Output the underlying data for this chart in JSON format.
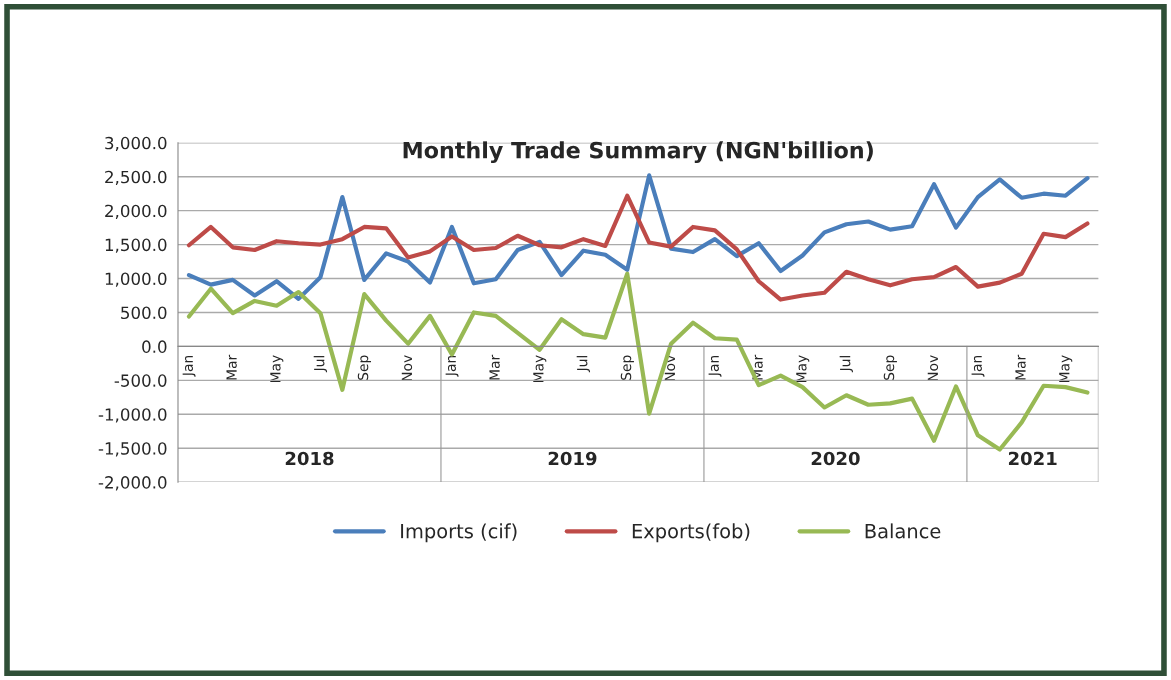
{
  "chart_data": {
    "type": "line",
    "title": "Monthly Trade Summary (NGN'billion)",
    "categories": [
      "Jan",
      null,
      "Mar",
      null,
      "May",
      null,
      "Jul",
      null,
      "Sep",
      null,
      "Nov",
      null,
      "Jan",
      null,
      "Mar",
      null,
      "May",
      null,
      "Jul",
      null,
      "Sep",
      null,
      "Nov",
      null,
      "Jan",
      null,
      "Mar",
      null,
      "May",
      null,
      "Jul",
      null,
      "Sep",
      null,
      "Nov",
      null,
      "Jan",
      null,
      "Mar",
      null,
      "May",
      null
    ],
    "series": [
      {
        "name": "Imports (cif)",
        "color": "#4a7ebb",
        "values": [
          1050,
          910,
          980,
          750,
          960,
          700,
          1020,
          2200,
          980,
          1370,
          1250,
          940,
          1760,
          930,
          990,
          1420,
          1540,
          1050,
          1410,
          1350,
          1130,
          2520,
          1440,
          1390,
          1580,
          1330,
          1520,
          1110,
          1340,
          1680,
          1800,
          1840,
          1720,
          1770,
          2390,
          1750,
          2200,
          2460,
          2190,
          2250,
          2220,
          2480
        ]
      },
      {
        "name": "Exports(fob)",
        "color": "#be4b48",
        "values": [
          1490,
          1760,
          1460,
          1420,
          1550,
          1520,
          1500,
          1580,
          1760,
          1740,
          1310,
          1400,
          1620,
          1420,
          1450,
          1630,
          1490,
          1460,
          1580,
          1480,
          2220,
          1530,
          1470,
          1760,
          1710,
          1430,
          960,
          690,
          750,
          790,
          1100,
          990,
          900,
          990,
          1020,
          1170,
          880,
          940,
          1070,
          1660,
          1610,
          1810
        ]
      },
      {
        "name": "Balance",
        "color": "#98b954",
        "values": [
          440,
          850,
          490,
          670,
          600,
          800,
          490,
          -640,
          770,
          380,
          40,
          450,
          -120,
          500,
          450,
          200,
          -50,
          400,
          180,
          130,
          1070,
          -990,
          40,
          350,
          120,
          100,
          -570,
          -430,
          -600,
          -900,
          -720,
          -860,
          -840,
          -770,
          -1390,
          -590,
          -1310,
          -1520,
          -1120,
          -580,
          -600,
          -680
        ]
      }
    ],
    "ylim": [
      -2000,
      3000
    ],
    "yticks": [
      {
        "value": -2000,
        "label": "-2,000.0"
      },
      {
        "value": -1500,
        "label": "-1,500.0"
      },
      {
        "value": -1000,
        "label": "-1,000.0"
      },
      {
        "value": -500,
        "label": "-500.0"
      },
      {
        "value": 0,
        "label": "0.0"
      },
      {
        "value": 500,
        "label": "500.0"
      },
      {
        "value": 1000,
        "label": "1,000.0"
      },
      {
        "value": 1500,
        "label": "1,500.0"
      },
      {
        "value": 2000,
        "label": "2,000.0"
      },
      {
        "value": 2500,
        "label": "2,500.0"
      },
      {
        "value": 3000,
        "label": "3,000.0"
      }
    ],
    "annotations": [
      "2018",
      "2019",
      "2020",
      "2021"
    ],
    "grid": "y",
    "legend": "bottom",
    "marker": "none",
    "line_style": "solid"
  }
}
